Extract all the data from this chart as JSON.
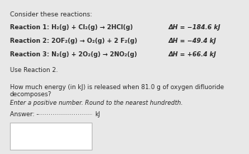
{
  "background_color": "#e8e8e8",
  "panel_color": "#f5f5f5",
  "title": "Consider these reactions:",
  "r1_left": "Reaction 1: H₂(g) + Cl₂(g) → 2HCl(g)",
  "r1_dH": "ΔH = −184.6 kJ",
  "r2_left": "Reaction 2: 2OF₂(g) → O₂(g) + 2 F₂(g)",
  "r2_dH": "ΔH = −49.4 kJ",
  "r3_left": "Reaction 3: N₂(g) + 2O₂(g) → 2NO₂(g)",
  "r3_dH": "ΔH = +66.4 kJ",
  "use_reaction": "Use Reaction 2.",
  "question": "How much energy (in kJ) is released when 81.0 g of oxygen difluoride decomposes?",
  "instruction": "Enter a positive number. Round to the nearest hundredth.",
  "answer_prefix": "Answer: -",
  "answer_unit": "kJ",
  "fs_title": 6.5,
  "fs_body": 6.2,
  "fs_italic": 6.0,
  "text_color": "#2a2a2a",
  "dH_color": "#2a2a2a",
  "box_fill": "#ffffff",
  "box_edge": "#bbbbbb",
  "dot_color": "#777777"
}
